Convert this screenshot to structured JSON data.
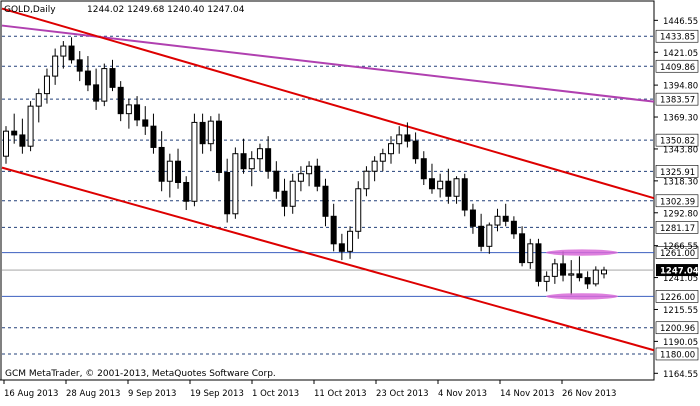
{
  "chart_data": {
    "type": "candlestick",
    "symbol_label": "GOLD,Daily",
    "ohlc_label": "1244.02 1249.68 1240.40 1247.04",
    "footer": "GCM MetaTrader, © 2001-2013, MetaQuotes Software Corp.",
    "ylim": [
      1159.2,
      1461.2
    ],
    "y_ticks": [
      "1446.55",
      "1421.05",
      "1394.80",
      "1369.30",
      "1343.80",
      "1318.30",
      "1292.80",
      "1266.55",
      "1241.05",
      "1215.55",
      "1190.05",
      "1164.55"
    ],
    "x_ticks": [
      "16 Aug 2013",
      "28 Aug 2013",
      "9 Sep 2013",
      "19 Sep 2013",
      "1 Oct 2013",
      "11 Oct 2013",
      "23 Oct 2013",
      "4 Nov 2013",
      "14 Nov 2013",
      "26 Nov 2013"
    ],
    "levels": [
      {
        "label": "1433.85",
        "value": 1433.85
      },
      {
        "label": "1409.86",
        "value": 1409.86
      },
      {
        "label": "1383.57",
        "value": 1383.57
      },
      {
        "label": "1350.82",
        "value": 1350.82
      },
      {
        "label": "1325.91",
        "value": 1325.91
      },
      {
        "label": "1302.39",
        "value": 1302.39
      },
      {
        "label": "1281.17",
        "value": 1281.17
      },
      {
        "label": "1261.00",
        "value": 1261.0
      },
      {
        "label": "1226.00",
        "value": 1226.0
      },
      {
        "label": "1200.96",
        "value": 1200.96
      },
      {
        "label": "1180.00",
        "value": 1180.0
      }
    ],
    "current_price": {
      "label": "1247.04",
      "value": 1247.04
    },
    "colors": {
      "grid": "#000000",
      "candle": "#000000",
      "channel": "#dd0000",
      "resistance": "#b040b0",
      "zone": "#d86ad8",
      "level_line": "#3b5fbf",
      "axis_text": "#000000"
    },
    "candles": [
      [
        1338,
        1362,
        1332,
        1358
      ],
      [
        1358,
        1372,
        1348,
        1355
      ],
      [
        1355,
        1368,
        1340,
        1346
      ],
      [
        1346,
        1382,
        1342,
        1378
      ],
      [
        1378,
        1392,
        1365,
        1388
      ],
      [
        1388,
        1408,
        1380,
        1402
      ],
      [
        1402,
        1424,
        1395,
        1418
      ],
      [
        1418,
        1430,
        1408,
        1426
      ],
      [
        1426,
        1433,
        1412,
        1415
      ],
      [
        1415,
        1422,
        1398,
        1406
      ],
      [
        1406,
        1418,
        1390,
        1395
      ],
      [
        1395,
        1408,
        1375,
        1382
      ],
      [
        1382,
        1412,
        1378,
        1408
      ],
      [
        1408,
        1415,
        1390,
        1393
      ],
      [
        1393,
        1398,
        1366,
        1372
      ],
      [
        1372,
        1384,
        1360,
        1379
      ],
      [
        1379,
        1386,
        1362,
        1367
      ],
      [
        1367,
        1378,
        1355,
        1362
      ],
      [
        1362,
        1372,
        1340,
        1345
      ],
      [
        1345,
        1358,
        1310,
        1318
      ],
      [
        1318,
        1340,
        1305,
        1334
      ],
      [
        1334,
        1344,
        1312,
        1317
      ],
      [
        1317,
        1322,
        1295,
        1302
      ],
      [
        1302,
        1372,
        1298,
        1365
      ],
      [
        1365,
        1372,
        1340,
        1348
      ],
      [
        1348,
        1370,
        1342,
        1366
      ],
      [
        1366,
        1372,
        1318,
        1325
      ],
      [
        1325,
        1336,
        1285,
        1292
      ],
      [
        1292,
        1345,
        1288,
        1340
      ],
      [
        1340,
        1352,
        1324,
        1328
      ],
      [
        1328,
        1342,
        1314,
        1336
      ],
      [
        1336,
        1348,
        1326,
        1344
      ],
      [
        1344,
        1354,
        1320,
        1326
      ],
      [
        1326,
        1334,
        1304,
        1310
      ],
      [
        1310,
        1320,
        1290,
        1298
      ],
      [
        1298,
        1324,
        1292,
        1318
      ],
      [
        1318,
        1330,
        1310,
        1324
      ],
      [
        1324,
        1334,
        1314,
        1330
      ],
      [
        1330,
        1336,
        1310,
        1314
      ],
      [
        1314,
        1320,
        1282,
        1290
      ],
      [
        1290,
        1300,
        1262,
        1268
      ],
      [
        1268,
        1276,
        1255,
        1262
      ],
      [
        1262,
        1282,
        1256,
        1278
      ],
      [
        1278,
        1318,
        1272,
        1312
      ],
      [
        1312,
        1330,
        1306,
        1326
      ],
      [
        1326,
        1338,
        1318,
        1334
      ],
      [
        1334,
        1344,
        1326,
        1340
      ],
      [
        1340,
        1354,
        1332,
        1348
      ],
      [
        1348,
        1362,
        1340,
        1355
      ],
      [
        1355,
        1365,
        1345,
        1350
      ],
      [
        1350,
        1357,
        1332,
        1336
      ],
      [
        1336,
        1342,
        1315,
        1320
      ],
      [
        1320,
        1332,
        1308,
        1312
      ],
      [
        1312,
        1324,
        1305,
        1318
      ],
      [
        1318,
        1328,
        1300,
        1306
      ],
      [
        1306,
        1322,
        1300,
        1320
      ],
      [
        1320,
        1324,
        1290,
        1295
      ],
      [
        1295,
        1300,
        1276,
        1282
      ],
      [
        1282,
        1292,
        1262,
        1266
      ],
      [
        1266,
        1285,
        1260,
        1283
      ],
      [
        1283,
        1296,
        1278,
        1290
      ],
      [
        1290,
        1300,
        1282,
        1286
      ],
      [
        1286,
        1290,
        1272,
        1276
      ],
      [
        1276,
        1282,
        1250,
        1253
      ],
      [
        1253,
        1272,
        1248,
        1268
      ],
      [
        1268,
        1272,
        1234,
        1238
      ],
      [
        1238,
        1246,
        1230,
        1242
      ],
      [
        1242,
        1256,
        1236,
        1252
      ],
      [
        1252,
        1262,
        1238,
        1243
      ],
      [
        1243,
        1255,
        1227,
        1244
      ],
      [
        1244,
        1258,
        1238,
        1241
      ],
      [
        1241,
        1246,
        1232,
        1236
      ],
      [
        1236,
        1250,
        1234,
        1247
      ],
      [
        1244,
        1249.68,
        1240.4,
        1247.04
      ]
    ],
    "channel_upper": [
      {
        "x": "16 Aug 2013",
        "y": 1455
      },
      {
        "x": "26 Nov 2013",
        "y": 1318
      }
    ],
    "channel_lower": [
      {
        "x": "16 Aug 2013",
        "y": 1328
      },
      {
        "x": "26 Nov 2013",
        "y": 1196
      }
    ],
    "resistance_line": [
      {
        "x": "16 Aug 2013",
        "y": 1442
      },
      {
        "x": "26 Nov 2013",
        "y": 1387
      }
    ],
    "zones": [
      1261,
      1226
    ]
  }
}
